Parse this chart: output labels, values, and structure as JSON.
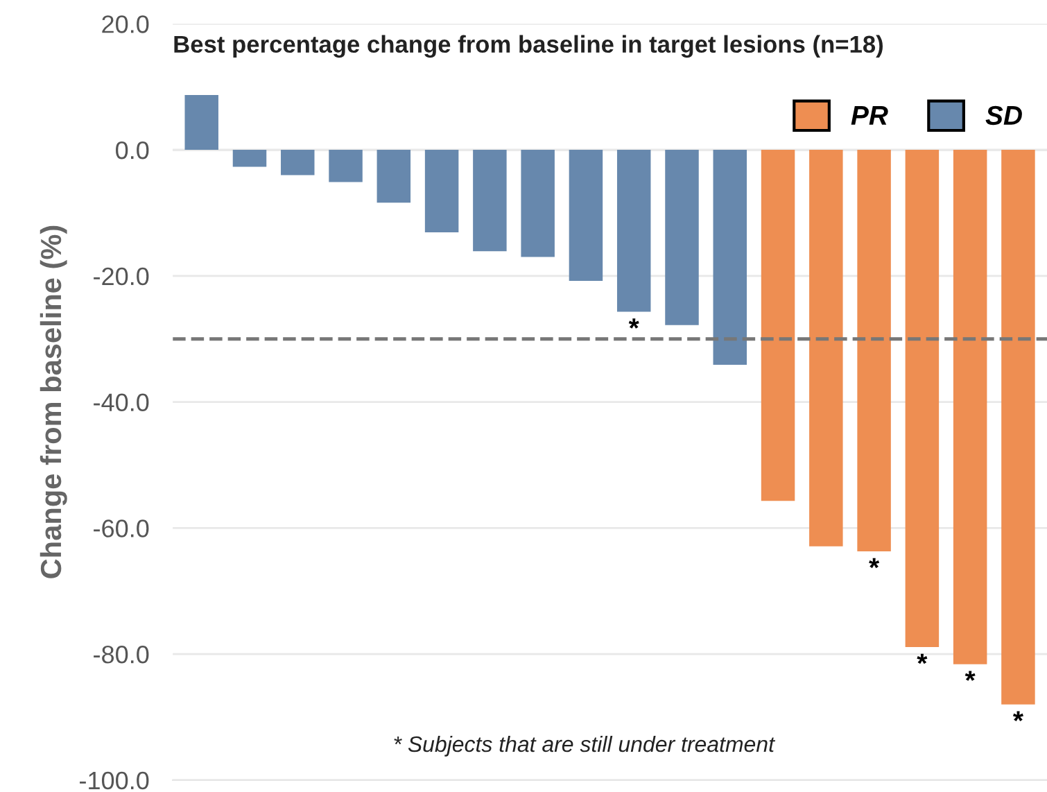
{
  "chart_data": {
    "type": "bar",
    "title": "Best percentage change from baseline in target lesions (n=18)",
    "ylabel": "Change from baseline (%)",
    "categories": [
      null,
      null,
      null,
      null,
      null,
      null,
      null,
      null,
      null,
      null,
      null,
      null,
      null,
      null,
      null,
      null,
      null,
      null
    ],
    "series": [
      {
        "name": "PR",
        "color": "#ee8e52",
        "values": [
          null,
          null,
          null,
          null,
          null,
          null,
          null,
          null,
          null,
          null,
          null,
          null,
          -55.7,
          -62.9,
          -63.7,
          -78.9,
          -81.6,
          -88.0
        ],
        "value_labels": [
          null,
          null,
          null,
          null,
          null,
          null,
          null,
          null,
          null,
          null,
          null,
          null,
          null,
          null,
          "*",
          "*",
          "*",
          "*"
        ]
      },
      {
        "name": "SD",
        "color": "#6788ad",
        "values": [
          8.7,
          -2.7,
          -4.0,
          -5.1,
          -8.4,
          -13.1,
          -16.1,
          -17.0,
          -20.8,
          -25.7,
          -27.8,
          -34.1,
          null,
          null,
          null,
          null,
          null,
          null
        ],
        "value_labels": [
          null,
          null,
          null,
          null,
          null,
          null,
          null,
          null,
          null,
          "*",
          null,
          null,
          null,
          null,
          null,
          null,
          null,
          null
        ]
      }
    ],
    "ylim": [
      -100,
      20
    ],
    "yticks": [
      {
        "value": 20,
        "label": "20.0"
      },
      {
        "value": 0,
        "label": "0.0"
      },
      {
        "value": -20,
        "label": "-20.0"
      },
      {
        "value": -40,
        "label": "-40.0"
      },
      {
        "value": -60,
        "label": "-60.0"
      },
      {
        "value": -80,
        "label": "-80.0"
      },
      {
        "value": -100,
        "label": "-100.0"
      }
    ],
    "ref_lines": [
      {
        "axis": "y",
        "value": -30,
        "color": "#777777",
        "line_style": "dashed"
      }
    ],
    "annotations": [
      "* Subjects that are still under treatment"
    ],
    "grid": "y",
    "legend": "top right",
    "tick_labels": "y"
  }
}
